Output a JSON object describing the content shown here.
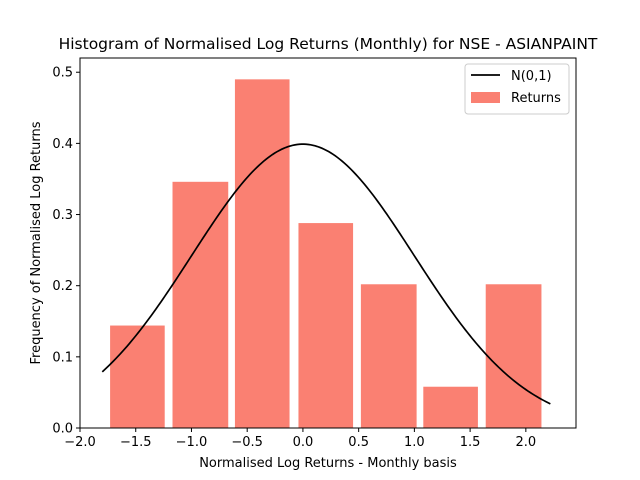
{
  "chart_data": {
    "type": "bar",
    "title": "Histogram of Normalised Log Returns (Monthly) for NSE - ASIANPAINT",
    "xlabel": "Normalised Log Returns - Monthly basis",
    "ylabel": "Frequency of Normalised Log Returns",
    "xlim": [
      -2.0,
      2.45
    ],
    "ylim": [
      0.0,
      0.52
    ],
    "xticks": [
      -2.0,
      -1.5,
      -1.0,
      -0.5,
      0.0,
      0.5,
      1.0,
      1.5,
      2.0
    ],
    "xtick_labels": [
      "−2.0",
      "−1.5",
      "−1.0",
      "−0.5",
      "0.0",
      "0.5",
      "1.0",
      "1.5",
      "2.0"
    ],
    "yticks": [
      0.0,
      0.1,
      0.2,
      0.3,
      0.4,
      0.5
    ],
    "ytick_labels": [
      "0.0",
      "0.1",
      "0.2",
      "0.3",
      "0.4",
      "0.5"
    ],
    "legend_position": "top-right",
    "bar_color": "#fa8072",
    "line_color": "#000000",
    "bars": {
      "name": "Returns",
      "bins": [
        {
          "left": -1.73,
          "right": -1.24,
          "value": 0.144
        },
        {
          "left": -1.17,
          "right": -0.67,
          "value": 0.346
        },
        {
          "left": -0.61,
          "right": -0.12,
          "value": 0.49
        },
        {
          "left": -0.04,
          "right": 0.45,
          "value": 0.288
        },
        {
          "left": 0.52,
          "right": 1.02,
          "value": 0.202
        },
        {
          "left": 1.08,
          "right": 1.57,
          "value": 0.058
        },
        {
          "left": 1.64,
          "right": 2.14,
          "value": 0.202
        }
      ]
    },
    "curve": {
      "name": "N(0,1)",
      "x_range": [
        -1.8,
        2.22
      ]
    }
  }
}
